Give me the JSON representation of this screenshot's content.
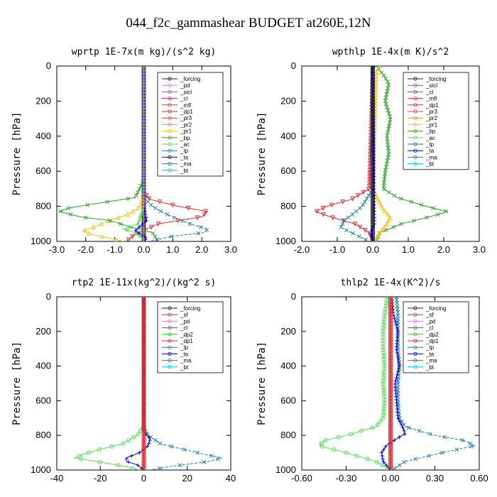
{
  "figure_title": "044_f2c_gammashear  BUDGET at260E,12N",
  "chart_data": [
    {
      "type": "line",
      "title": "wprtp  1E-7x(m kg)/(s^2 kg)",
      "ylabel": "Pressure [hPa]",
      "xlim": [
        -3.0,
        3.0
      ],
      "ylim": [
        1000,
        0
      ],
      "xticks": [
        "-3.0",
        "-2.0",
        "-1.0",
        "0.0",
        "1.0",
        "2.0",
        "3.0"
      ],
      "yticks": [
        "0",
        "200",
        "400",
        "600",
        "800",
        "1000"
      ],
      "legend": [
        "_forcing",
        "_pd",
        "_sicl",
        "_cl",
        "_mfl",
        "_dp1",
        "_pr3",
        "_pr2",
        "_pr1",
        "_bp",
        "_ac",
        "_tp",
        "_ta",
        "_ma",
        "_bt"
      ],
      "series": [
        {
          "name": "_forcing",
          "color": "#222222",
          "marker": "o",
          "p": [
            0,
            100,
            200,
            300,
            400,
            500,
            600,
            700,
            800,
            900,
            1000
          ],
          "values": [
            0,
            0,
            0,
            0,
            0,
            0,
            0,
            0,
            0,
            0,
            0
          ]
        },
        {
          "name": "_dp1",
          "color": "#e0262a",
          "marker": "v",
          "p": [
            0,
            600,
            720,
            760,
            800,
            830,
            860,
            900,
            930,
            960,
            1000
          ],
          "values": [
            0,
            0,
            0,
            0.2,
            1.2,
            2.2,
            2.0,
            0.5,
            0.1,
            -0.3,
            -0.6
          ]
        },
        {
          "name": "_pr1",
          "color": "#f2c21d",
          "marker": "^",
          "p": [
            0,
            700,
            800,
            850,
            880,
            910,
            940,
            960,
            980,
            1000
          ],
          "values": [
            0,
            0,
            -0.1,
            -0.6,
            -1.2,
            -1.6,
            -2.1,
            -1.8,
            -1.2,
            -0.7
          ]
        },
        {
          "name": "_bp",
          "color": "#2ca02c",
          "marker": "x",
          "p": [
            0,
            650,
            750,
            780,
            810,
            830,
            860,
            880,
            920,
            950,
            1000
          ],
          "values": [
            0,
            0,
            -0.3,
            -1.5,
            -2.6,
            -2.9,
            -2.2,
            -1.2,
            -0.4,
            0.3,
            0.5
          ]
        },
        {
          "name": "_ac",
          "color": "#55dd55",
          "marker": "*",
          "p": [
            0,
            800,
            900,
            930,
            950,
            1000
          ],
          "values": [
            0,
            0,
            -0.2,
            -0.7,
            -0.3,
            0.1
          ]
        },
        {
          "name": "_tp",
          "color": "#1f77b4",
          "marker": "x",
          "p": [
            0,
            750,
            800,
            830,
            860,
            900,
            930,
            950,
            970,
            1000
          ],
          "values": [
            0,
            0,
            0.3,
            0.6,
            1.0,
            1.6,
            2.2,
            2.1,
            1.0,
            0.2
          ]
        },
        {
          "name": "_ta",
          "color": "#0000cc",
          "marker": "+",
          "p": [
            0,
            800,
            880,
            940,
            980,
            1000
          ],
          "values": [
            0,
            0,
            0.1,
            -0.3,
            0.1,
            0
          ]
        },
        {
          "name": "_pd",
          "color": "#cc88cc",
          "marker": "-",
          "p": [
            0,
            1000
          ],
          "values": [
            0,
            0
          ]
        }
      ]
    },
    {
      "type": "line",
      "title": "wpthlp  1E-4x(m K)/s^2",
      "ylabel": "Pressure [hPa]",
      "xlim": [
        -2.0,
        3.0
      ],
      "ylim": [
        1000,
        0
      ],
      "xticks": [
        "-2.0",
        "-1.0",
        "0.0",
        "1.0",
        "2.0",
        "3.0"
      ],
      "yticks": [
        "0",
        "200",
        "400",
        "600",
        "800",
        "1000"
      ],
      "legend": [
        "_forcing",
        "_sicl",
        "_cl",
        "_mfl",
        "_dp1",
        "_pr3",
        "_pr2",
        "_pr1",
        "_bp",
        "_ac",
        "_tp",
        "_ta",
        "_ma",
        "_bt"
      ],
      "series": [
        {
          "name": "_ac",
          "color": "#2ca02c",
          "marker": "x",
          "p": [
            0,
            50,
            100,
            150,
            200,
            300,
            400,
            500,
            600,
            700,
            750,
            800,
            830,
            860,
            900,
            950,
            1000
          ],
          "values": [
            0.1,
            0.3,
            0.45,
            0.4,
            0.35,
            0.5,
            0.4,
            0.45,
            0.35,
            0.3,
            0.7,
            1.5,
            2.1,
            1.6,
            0.8,
            0.2,
            0.1
          ]
        },
        {
          "name": "_dp1",
          "color": "#e0262a",
          "marker": "v",
          "p": [
            0,
            700,
            760,
            800,
            830,
            860,
            900,
            950,
            1000
          ],
          "values": [
            0,
            -0.1,
            -0.6,
            -1.3,
            -1.6,
            -1.2,
            -0.5,
            -0.1,
            0
          ]
        },
        {
          "name": "_tp",
          "color": "#1f77b4",
          "marker": "x",
          "p": [
            0,
            700,
            800,
            850,
            880,
            920,
            960,
            1000
          ],
          "values": [
            0,
            0,
            -0.3,
            -0.6,
            -0.8,
            -0.9,
            -0.5,
            -0.1
          ]
        },
        {
          "name": "_pr1",
          "color": "#f2c21d",
          "marker": "^",
          "p": [
            0,
            30,
            700,
            820,
            860,
            900,
            950,
            1000
          ],
          "values": [
            0.2,
            0.1,
            0,
            0.3,
            0.5,
            0.4,
            0.2,
            0.05
          ]
        },
        {
          "name": "_pd",
          "color": "#cc88cc",
          "marker": "o",
          "p": [
            0,
            1000
          ],
          "values": [
            0,
            0
          ]
        },
        {
          "name": "_forcing",
          "color": "#222222",
          "marker": "o",
          "p": [
            0,
            100,
            200,
            300,
            400,
            500,
            600,
            700,
            800,
            900,
            1000
          ],
          "values": [
            0,
            0,
            0,
            0,
            0,
            0,
            0,
            0,
            0,
            0,
            0
          ]
        },
        {
          "name": "_ta",
          "color": "#0000cc",
          "marker": "+",
          "p": [
            0,
            900,
            950,
            1000
          ],
          "values": [
            0,
            0.05,
            -0.05,
            0
          ]
        }
      ]
    },
    {
      "type": "line",
      "title": "rtp2  1E-11x(kg^2)/(kg^2 s)",
      "ylabel": "Pressure [hPa]",
      "xlim": [
        -40,
        40
      ],
      "ylim": [
        1000,
        0
      ],
      "xticks": [
        "-40",
        "-20",
        "0",
        "20",
        "40"
      ],
      "yticks": [
        "0",
        "200",
        "400",
        "600",
        "800",
        "1000"
      ],
      "legend": [
        "_forcing",
        "_sf",
        "_pd",
        "_cl",
        "_dp2",
        "_dp1",
        "_tp",
        "_ta",
        "_ma",
        "_bt"
      ],
      "series": [
        {
          "name": "_dp1",
          "color": "#55dd55",
          "marker": "o",
          "p": [
            0,
            750,
            800,
            850,
            880,
            910,
            930,
            950,
            980,
            1000
          ],
          "values": [
            0,
            0,
            -3,
            -10,
            -20,
            -28,
            -32,
            -22,
            -8,
            -2
          ]
        },
        {
          "name": "_tp",
          "color": "#1f77b4",
          "marker": "x",
          "p": [
            0,
            750,
            800,
            850,
            880,
            910,
            930,
            950,
            980,
            1000
          ],
          "values": [
            0,
            0,
            2,
            8,
            18,
            28,
            36,
            30,
            12,
            3
          ]
        },
        {
          "name": "_ta",
          "color": "#0000cc",
          "marker": "+",
          "p": [
            0,
            780,
            820,
            860,
            900,
            930,
            950,
            970,
            1000
          ],
          "values": [
            0,
            0,
            3,
            2,
            -2,
            -8,
            -8,
            -3,
            0
          ]
        },
        {
          "name": "_forcing",
          "color": "#e0262a",
          "marker": "o",
          "p": [
            0,
            100,
            200,
            300,
            400,
            500,
            600,
            700,
            800,
            900,
            1000
          ],
          "values": [
            0,
            0,
            0,
            0,
            0,
            0,
            0,
            0,
            0,
            0,
            0
          ]
        }
      ]
    },
    {
      "type": "line",
      "title": "thlp2  1E-4x(K^2)/s",
      "ylabel": "Pressure [hPa]",
      "xlim": [
        -0.6,
        0.6
      ],
      "ylim": [
        1000,
        0
      ],
      "xticks": [
        "-0.60",
        "-0.30",
        "0.00",
        "0.30",
        "0.60"
      ],
      "yticks": [
        "0",
        "200",
        "400",
        "600",
        "800",
        "1000"
      ],
      "legend": [
        "_forcing",
        "_sf",
        "_pd",
        "_cl",
        "_dp2",
        "_dp1",
        "_tp",
        "_ta",
        "_ma",
        "_bt"
      ],
      "series": [
        {
          "name": "_dp1",
          "color": "#55dd55",
          "marker": "o",
          "p": [
            0,
            100,
            200,
            300,
            400,
            500,
            600,
            700,
            750,
            800,
            830,
            860,
            900,
            950,
            1000
          ],
          "values": [
            -0.02,
            -0.04,
            -0.05,
            -0.05,
            -0.04,
            -0.05,
            -0.04,
            -0.05,
            -0.1,
            -0.3,
            -0.45,
            -0.48,
            -0.3,
            -0.1,
            0
          ]
        },
        {
          "name": "_tp",
          "color": "#1f77b4",
          "marker": "x",
          "p": [
            0,
            100,
            200,
            300,
            400,
            500,
            600,
            700,
            750,
            800,
            830,
            860,
            900,
            950,
            1000
          ],
          "values": [
            0.04,
            0.05,
            0.05,
            0.05,
            0.06,
            0.05,
            0.05,
            0.06,
            0.1,
            0.3,
            0.5,
            0.57,
            0.35,
            0.1,
            0.01
          ]
        },
        {
          "name": "_ta",
          "color": "#0000cc",
          "marker": "+",
          "p": [
            0,
            100,
            200,
            300,
            400,
            500,
            600,
            700,
            750,
            790,
            820,
            860,
            900,
            950,
            1000
          ],
          "values": [
            0.01,
            0.02,
            0.05,
            0.04,
            0.06,
            0.03,
            0.04,
            0.05,
            0.08,
            0.1,
            0.04,
            -0.03,
            -0.06,
            -0.05,
            0
          ]
        },
        {
          "name": "_forcing",
          "color": "#e0262a",
          "marker": "o",
          "p": [
            0,
            100,
            200,
            300,
            400,
            500,
            600,
            700,
            800,
            900,
            1000
          ],
          "values": [
            0,
            0,
            0,
            0,
            0,
            0,
            0,
            0,
            0,
            0,
            0
          ]
        }
      ]
    }
  ]
}
